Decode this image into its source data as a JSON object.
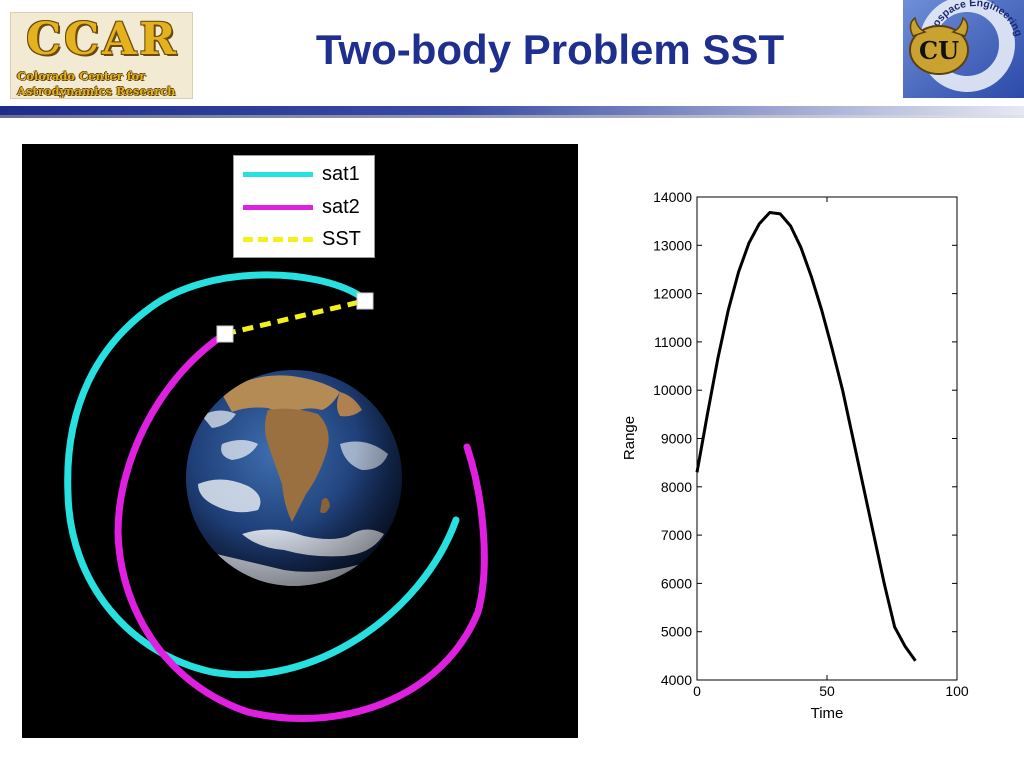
{
  "header": {
    "title": "Two-body Problem SST",
    "ccar_logo": {
      "abbrev": "CCAR",
      "line1": "Colorado Center for",
      "line2": "Astrodynamics Research"
    },
    "cu_logo": {
      "monogram": "CU",
      "arc_text": "Aerospace Engineering"
    }
  },
  "diagram": {
    "legend": [
      {
        "label": "sat1",
        "color": "#27e0e0",
        "style": "solid"
      },
      {
        "label": "sat2",
        "color": "#e020e0",
        "style": "solid"
      },
      {
        "label": "SST",
        "color": "#f2f21a",
        "style": "dashed"
      }
    ],
    "colors": {
      "sat1": "#27e0e0",
      "sat2": "#e020e0",
      "sst": "#f2f21a",
      "background": "#000000"
    }
  },
  "chart_data": {
    "type": "line",
    "title": "",
    "xlabel": "Time",
    "ylabel": "Range",
    "xlim": [
      0,
      100
    ],
    "ylim": [
      4000,
      14000
    ],
    "xticks": [
      0,
      50,
      100
    ],
    "yticks": [
      4000,
      5000,
      6000,
      7000,
      8000,
      9000,
      10000,
      11000,
      12000,
      13000,
      14000
    ],
    "grid": false,
    "series": [
      {
        "color": "#000000",
        "x": [
          0,
          4,
          8,
          12,
          16,
          20,
          24,
          28,
          32,
          36,
          40,
          44,
          48,
          52,
          56,
          60,
          64,
          68,
          72,
          76,
          80,
          84
        ],
        "y": [
          8300,
          9500,
          10650,
          11650,
          12450,
          13050,
          13450,
          13680,
          13650,
          13400,
          12950,
          12350,
          11650,
          10850,
          10000,
          9000,
          8000,
          7000,
          6000,
          5100,
          4700,
          4400
        ]
      }
    ]
  }
}
